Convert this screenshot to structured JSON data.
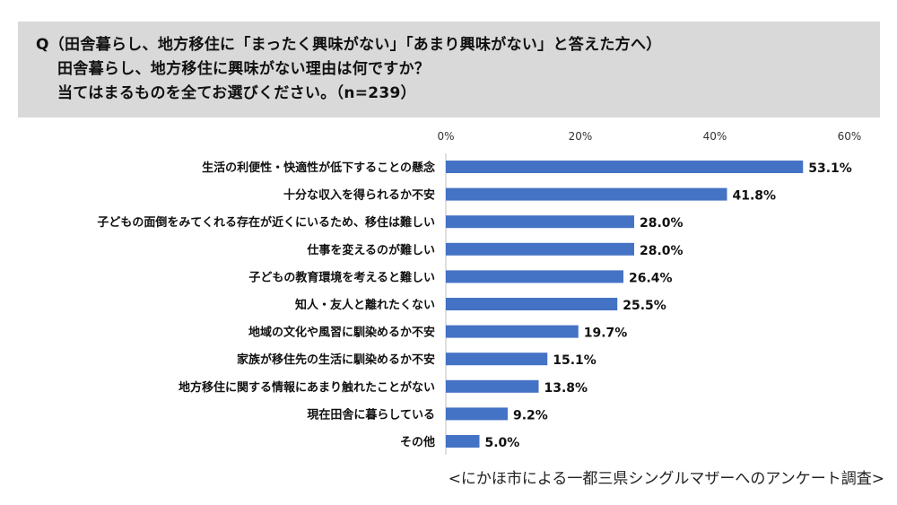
{
  "header": {
    "line1": "Q（田舎暮らし、地方移住に「まったく興味がない」「あまり興味がない」と答えた方へ）",
    "line2": "田舎暮らし、地方移住に興味がない理由は何ですか？",
    "line3": "当てはまるものを全てお選びください。（n=239）"
  },
  "footer": {
    "source": "<にかほ市による一都三県シングルマザーへのアンケート調査>"
  },
  "colors": {
    "bar": "#4472c4",
    "axis": "#bfbfbf"
  },
  "chart_data": {
    "type": "bar",
    "orientation": "horizontal",
    "categories": [
      "生活の利便性・快適性が低下することの懸念",
      "十分な収入を得られるか不安",
      "子どもの面倒をみてくれる存在が近くにいるため、移住は難しい",
      "仕事を変えるのが難しい",
      "子どもの教育環境を考えると難しい",
      "知人・友人と離れたくない",
      "地域の文化や風習に馴染めるか不安",
      "家族が移住先の生活に馴染めるか不安",
      "地方移住に関する情報にあまり触れたことがない",
      "現在田舎に暮らしている",
      "その他"
    ],
    "values": [
      53.1,
      41.8,
      28.0,
      28.0,
      26.4,
      25.5,
      19.7,
      15.1,
      13.8,
      9.2,
      5.0
    ],
    "value_labels": [
      "53.1%",
      "41.8%",
      "28.0%",
      "28.0%",
      "26.4%",
      "25.5%",
      "19.7%",
      "15.1%",
      "13.8%",
      "9.2%",
      "5.0%"
    ],
    "xlim": [
      0,
      60
    ],
    "ticks": [
      {
        "value": 0,
        "label": "0%"
      },
      {
        "value": 20,
        "label": "20%"
      },
      {
        "value": 40,
        "label": "40%"
      },
      {
        "value": 60,
        "label": "60%"
      }
    ],
    "grid": false
  }
}
